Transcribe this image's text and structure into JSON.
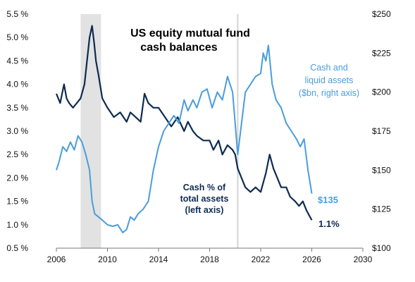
{
  "chart_data": {
    "type": "line",
    "title": [
      "US equity mutual fund",
      "cash balances"
    ],
    "xlim": [
      2006,
      2030
    ],
    "x_ticks": [
      "2006",
      "2010",
      "2014",
      "2018",
      "2022",
      "2026",
      "2030"
    ],
    "y_left": {
      "lim": [
        0.5,
        5.5
      ],
      "ticks": [
        "0.5 %",
        "1.0 %",
        "1.5 %",
        "2.0 %",
        "2.5 %",
        "3.0 %",
        "3.5 %",
        "4.0 %",
        "4.5 %",
        "5.0 %",
        "5.5 %"
      ]
    },
    "y_right": {
      "lim": [
        100,
        250
      ],
      "ticks": [
        "$100",
        "$125",
        "$150",
        "$175",
        "$200",
        "$225",
        "$250"
      ]
    },
    "shaded_periods": [
      [
        2007.9,
        2009.5
      ]
    ],
    "reference_lines": [
      2020.2
    ],
    "colors": {
      "cash_pct": "#0d2b52",
      "cash_assets": "#4a9ddb",
      "shade": "#e2e2e2"
    },
    "series": [
      {
        "key": "cash_pct",
        "axis": "left",
        "label_lines": [
          "Cash % of",
          "total assets",
          "(left axis)"
        ],
        "end_label": "1.1%",
        "x": [
          2006.0,
          2006.3,
          2006.6,
          2006.8,
          2007.0,
          2007.3,
          2007.6,
          2007.9,
          2008.2,
          2008.4,
          2008.6,
          2008.8,
          2008.95,
          2009.1,
          2009.3,
          2009.6,
          2010.0,
          2010.5,
          2011.0,
          2011.5,
          2011.8,
          2012.2,
          2012.6,
          2012.9,
          2013.2,
          2013.6,
          2014.0,
          2014.5,
          2015.0,
          2015.5,
          2016.0,
          2016.3,
          2016.7,
          2017.0,
          2017.5,
          2018.0,
          2018.3,
          2018.7,
          2019.0,
          2019.4,
          2019.8,
          2020.0,
          2020.2,
          2020.5,
          2020.8,
          2021.2,
          2021.6,
          2022.0,
          2022.4,
          2022.7,
          2023.0,
          2023.3,
          2023.6,
          2024.0,
          2024.3,
          2024.7,
          2025.0,
          2025.3,
          2025.6,
          2026.0
        ],
        "y": [
          3.8,
          3.6,
          4.0,
          3.7,
          3.6,
          3.5,
          3.6,
          3.7,
          4.0,
          4.5,
          5.0,
          5.25,
          4.9,
          4.5,
          4.2,
          3.7,
          3.5,
          3.3,
          3.4,
          3.2,
          3.4,
          3.3,
          3.2,
          3.8,
          3.6,
          3.5,
          3.5,
          3.3,
          3.1,
          3.3,
          3.0,
          3.2,
          3.0,
          2.9,
          2.8,
          2.8,
          2.6,
          2.8,
          2.5,
          2.7,
          2.6,
          2.5,
          2.2,
          2.0,
          1.8,
          1.7,
          1.8,
          1.7,
          2.1,
          2.5,
          2.2,
          2.0,
          1.8,
          1.8,
          1.6,
          1.5,
          1.4,
          1.5,
          1.3,
          1.1
        ]
      },
      {
        "key": "cash_assets",
        "axis": "right",
        "label_lines": [
          "Cash and",
          "liquid assets",
          "($bn, right axis)"
        ],
        "end_label": "$135",
        "x": [
          2006.0,
          2006.2,
          2006.5,
          2006.8,
          2007.1,
          2007.4,
          2007.7,
          2008.0,
          2008.3,
          2008.6,
          2008.8,
          2009.0,
          2009.3,
          2009.6,
          2010.0,
          2010.4,
          2010.8,
          2011.2,
          2011.5,
          2011.8,
          2012.1,
          2012.4,
          2012.8,
          2013.2,
          2013.6,
          2014.0,
          2014.4,
          2014.8,
          2015.2,
          2015.6,
          2016.0,
          2016.3,
          2016.7,
          2017.0,
          2017.4,
          2017.8,
          2018.2,
          2018.6,
          2019.0,
          2019.4,
          2019.8,
          2020.2,
          2020.5,
          2020.8,
          2021.2,
          2021.6,
          2022.0,
          2022.2,
          2022.4,
          2022.6,
          2022.9,
          2023.2,
          2023.6,
          2024.0,
          2024.4,
          2024.8,
          2025.1,
          2025.4,
          2025.7,
          2026.0
        ],
        "y": [
          150,
          155,
          165,
          162,
          168,
          163,
          172,
          168,
          160,
          150,
          130,
          122,
          120,
          118,
          115,
          114,
          115,
          110,
          112,
          120,
          118,
          122,
          125,
          130,
          150,
          165,
          175,
          180,
          185,
          180,
          195,
          188,
          195,
          190,
          200,
          202,
          190,
          200,
          195,
          210,
          200,
          160,
          180,
          200,
          205,
          210,
          212,
          225,
          220,
          230,
          205,
          195,
          190,
          180,
          175,
          170,
          165,
          170,
          150,
          135
        ]
      }
    ]
  }
}
